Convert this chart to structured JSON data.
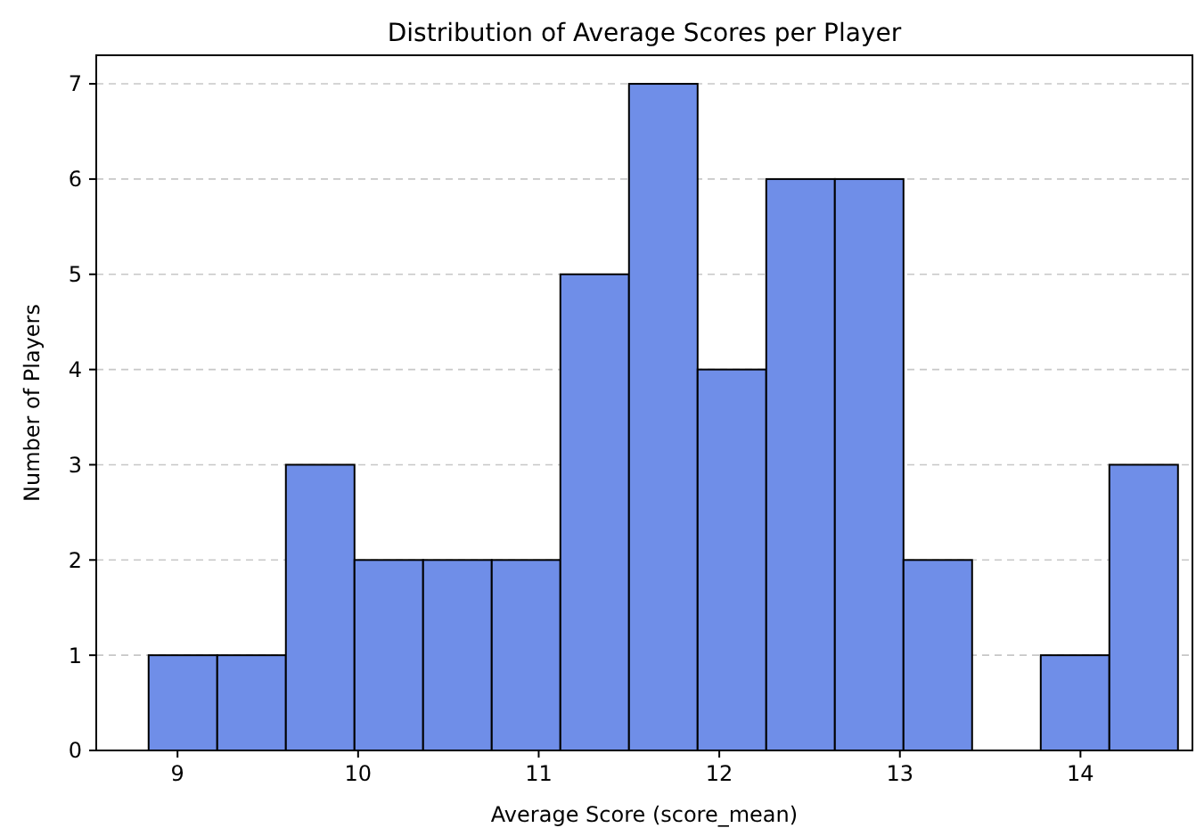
{
  "chart_data": {
    "type": "histogram",
    "title": "Distribution of Average Scores per Player",
    "xlabel": "Average Score (score_mean)",
    "ylabel": "Number of Players",
    "bins": [
      8.84,
      9.22,
      9.6,
      9.98,
      10.36,
      10.74,
      11.12,
      11.5,
      11.88,
      12.26,
      12.64,
      13.02,
      13.4,
      13.78,
      14.16,
      14.54
    ],
    "values": [
      1,
      1,
      3,
      2,
      2,
      2,
      5,
      7,
      4,
      6,
      6,
      2,
      0,
      1,
      3
    ],
    "color": "#6f8ee8",
    "xlim": [
      8.55,
      14.62
    ],
    "xticks": [
      9,
      10,
      11,
      12,
      13,
      14
    ],
    "ylim": [
      0,
      7.3
    ],
    "yticks": [
      0,
      1,
      2,
      3,
      4,
      5,
      6,
      7
    ],
    "grid": "y"
  }
}
